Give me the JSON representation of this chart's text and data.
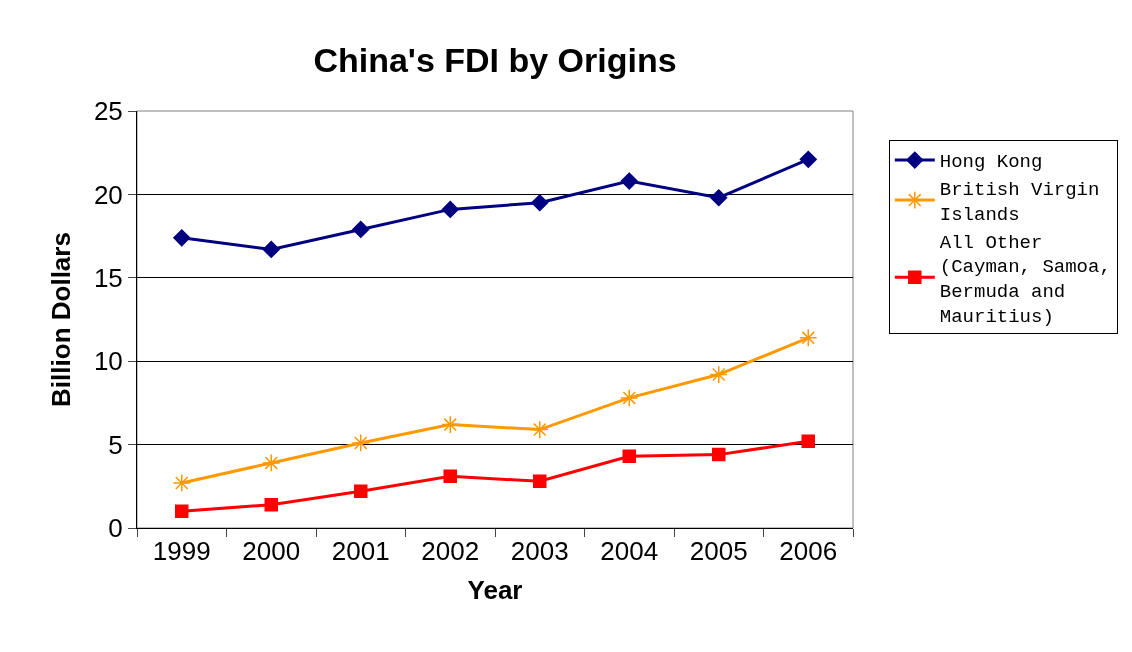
{
  "chart_data": {
    "type": "line",
    "title": "China's FDI by Origins",
    "xlabel": "Year",
    "ylabel": "Billion Dollars",
    "categories": [
      "1999",
      "2000",
      "2001",
      "2002",
      "2003",
      "2004",
      "2005",
      "2006"
    ],
    "series": [
      {
        "name": "Hong Kong",
        "color": "#000080",
        "marker": "diamond",
        "values": [
          17.4,
          16.7,
          17.9,
          19.1,
          19.5,
          20.8,
          19.8,
          22.1
        ]
      },
      {
        "name": "British Virgin Islands",
        "color": "#ff9900",
        "marker": "cross",
        "values": [
          2.7,
          3.9,
          5.1,
          6.2,
          5.9,
          7.8,
          9.2,
          11.4
        ]
      },
      {
        "name": "All Other (Cayman, Samoa, Bermuda and Mauritius)",
        "color": "#ff0000",
        "marker": "square",
        "values": [
          1.0,
          1.4,
          2.2,
          3.1,
          2.8,
          4.3,
          4.4,
          5.2
        ]
      }
    ],
    "ylim": [
      0,
      25
    ],
    "yticks": [
      0,
      5,
      10,
      15,
      20,
      25
    ],
    "grid": "y",
    "legend": "right",
    "line_style": "solid"
  }
}
